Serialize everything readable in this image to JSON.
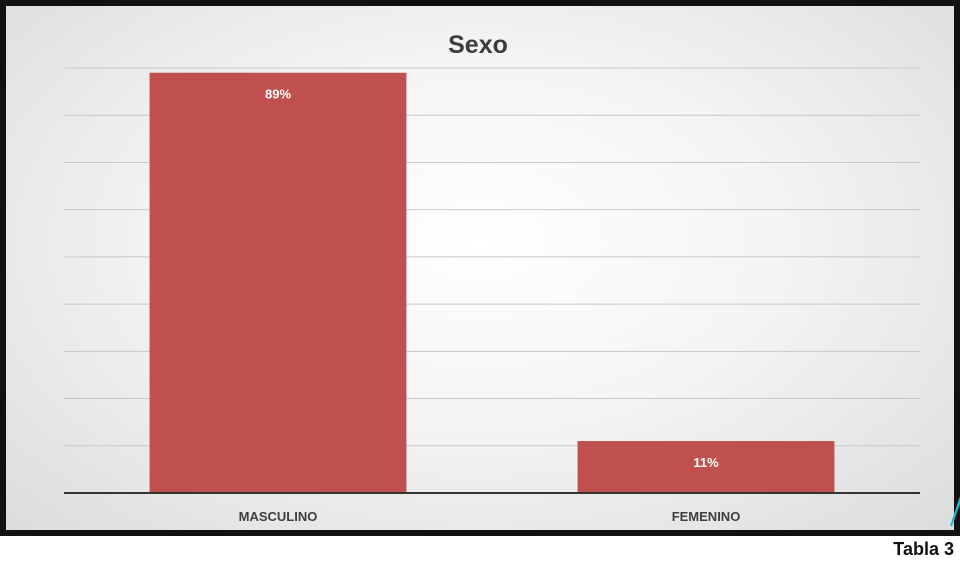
{
  "chart_data": {
    "type": "bar",
    "title": "Sexo",
    "categories": [
      "MASCULINO",
      "FEMENINO"
    ],
    "values": [
      89,
      11
    ],
    "data_labels": [
      "89%",
      "11%"
    ],
    "ylim": [
      0,
      90
    ],
    "grid": true,
    "legend": "none",
    "bar_color": "#c0504d"
  },
  "caption": "Tabla 3",
  "colors": {
    "accent": "#1fb7c9",
    "background": "#111114"
  }
}
